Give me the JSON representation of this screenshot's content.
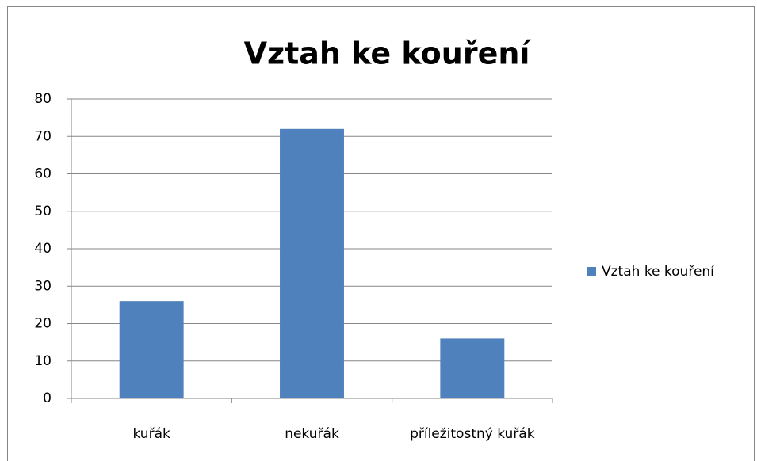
{
  "chart_data": {
    "type": "bar",
    "title": "Vztah ke kouření",
    "categories": [
      "kuřák",
      "nekuřák",
      "příležitostný kuřák"
    ],
    "series": [
      {
        "name": "Vztah ke kouření",
        "color": "#4f81bd",
        "values": [
          26,
          72,
          16
        ]
      }
    ],
    "ylim": [
      0,
      80
    ],
    "yticks": [
      0,
      10,
      20,
      30,
      40,
      50,
      60,
      70,
      80
    ],
    "grid": true,
    "legend": "right"
  }
}
